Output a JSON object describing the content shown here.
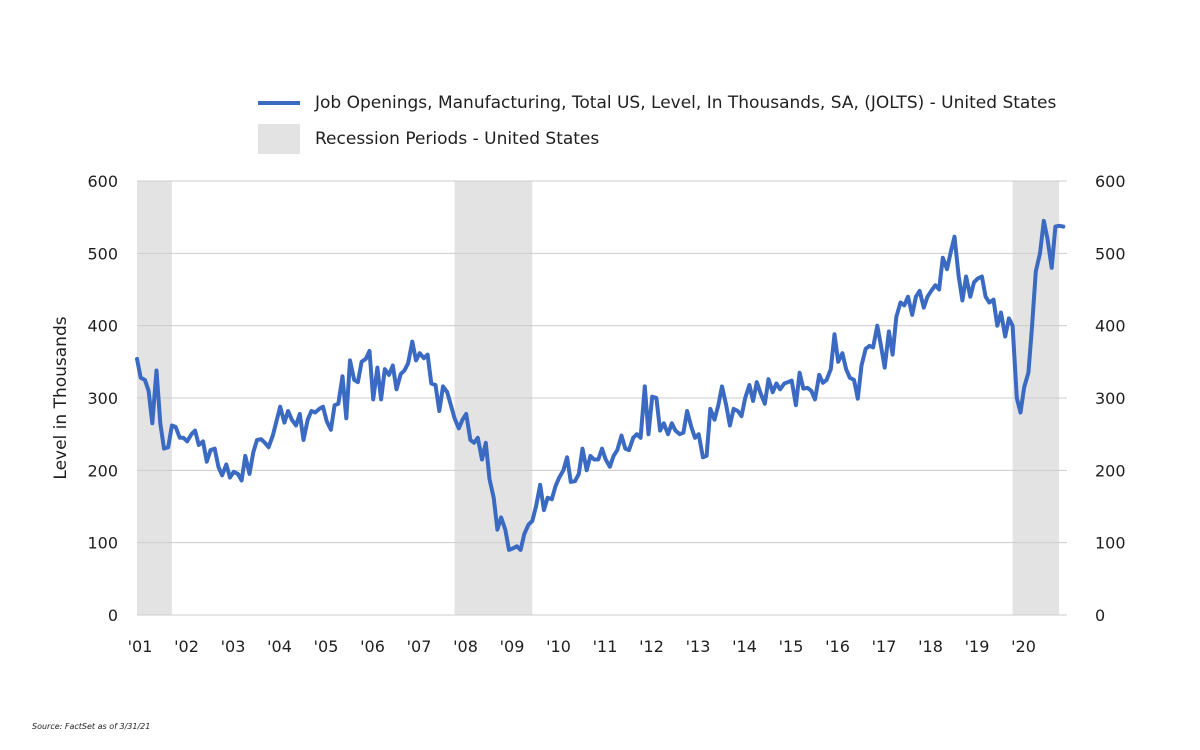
{
  "legend": {
    "series_label": "Job Openings, Manufacturing, Total US, Level, In Thousands, SA, (JOLTS) - United States",
    "recession_label": "Recession Periods - United States"
  },
  "source": "Source: FactSet as of 3/31/21",
  "colors": {
    "series": "#3a6ac2",
    "recession": "#e3e3e3",
    "grid": "#cccccc"
  },
  "chart_data": {
    "type": "line",
    "ylabel": "Level in Thousands",
    "ylim": [
      0,
      600
    ],
    "yticks": [
      0,
      100,
      200,
      300,
      400,
      500,
      600
    ],
    "xlim": [
      2001,
      2021.0
    ],
    "x_tick_labels": [
      "'01",
      "'02",
      "'03",
      "'04",
      "'05",
      "'06",
      "'07",
      "'08",
      "'09",
      "'10",
      "'11",
      "'12",
      "'13",
      "'14",
      "'15",
      "'16",
      "'17",
      "'18",
      "'19",
      "'20"
    ],
    "grid": true,
    "legend_position": "top",
    "recessions": [
      [
        2001.0,
        2001.75
      ],
      [
        2007.83,
        2009.5
      ],
      [
        2019.83,
        2020.83
      ]
    ],
    "series": [
      {
        "name": "Job Openings, Manufacturing, Total US, Level, In Thousands, SA, (JOLTS) - United States",
        "x": [
          2001.0,
          2001.08,
          2001.17,
          2001.25,
          2001.33,
          2001.42,
          2001.5,
          2001.58,
          2001.67,
          2001.75,
          2001.83,
          2001.92,
          2002.0,
          2002.08,
          2002.17,
          2002.25,
          2002.33,
          2002.42,
          2002.5,
          2002.58,
          2002.67,
          2002.75,
          2002.83,
          2002.92,
          2003.0,
          2003.08,
          2003.17,
          2003.25,
          2003.33,
          2003.42,
          2003.5,
          2003.58,
          2003.67,
          2003.75,
          2003.83,
          2003.92,
          2004.0,
          2004.08,
          2004.17,
          2004.25,
          2004.33,
          2004.42,
          2004.5,
          2004.58,
          2004.67,
          2004.75,
          2004.83,
          2004.92,
          2005.0,
          2005.08,
          2005.17,
          2005.25,
          2005.33,
          2005.42,
          2005.5,
          2005.58,
          2005.67,
          2005.75,
          2005.83,
          2005.92,
          2006.0,
          2006.08,
          2006.17,
          2006.25,
          2006.33,
          2006.42,
          2006.5,
          2006.58,
          2006.67,
          2006.75,
          2006.83,
          2006.92,
          2007.0,
          2007.08,
          2007.17,
          2007.25,
          2007.33,
          2007.42,
          2007.5,
          2007.58,
          2007.67,
          2007.75,
          2007.83,
          2007.92,
          2008.0,
          2008.08,
          2008.17,
          2008.25,
          2008.33,
          2008.42,
          2008.5,
          2008.58,
          2008.67,
          2008.75,
          2008.83,
          2008.92,
          2009.0,
          2009.08,
          2009.17,
          2009.25,
          2009.33,
          2009.42,
          2009.5,
          2009.58,
          2009.67,
          2009.75,
          2009.83,
          2009.92,
          2010.0,
          2010.08,
          2010.17,
          2010.25,
          2010.33,
          2010.42,
          2010.5,
          2010.58,
          2010.67,
          2010.75,
          2010.83,
          2010.92,
          2011.0,
          2011.08,
          2011.17,
          2011.25,
          2011.33,
          2011.42,
          2011.5,
          2011.58,
          2011.67,
          2011.75,
          2011.83,
          2011.92,
          2012.0,
          2012.08,
          2012.17,
          2012.25,
          2012.33,
          2012.42,
          2012.5,
          2012.58,
          2012.67,
          2012.75,
          2012.83,
          2012.92,
          2013.0,
          2013.08,
          2013.17,
          2013.25,
          2013.33,
          2013.42,
          2013.5,
          2013.58,
          2013.67,
          2013.75,
          2013.83,
          2013.92,
          2014.0,
          2014.08,
          2014.17,
          2014.25,
          2014.33,
          2014.42,
          2014.5,
          2014.58,
          2014.67,
          2014.75,
          2014.83,
          2014.92,
          2015.0,
          2015.08,
          2015.17,
          2015.25,
          2015.33,
          2015.42,
          2015.5,
          2015.58,
          2015.67,
          2015.75,
          2015.83,
          2015.92,
          2016.0,
          2016.08,
          2016.17,
          2016.25,
          2016.33,
          2016.42,
          2016.5,
          2016.58,
          2016.67,
          2016.75,
          2016.83,
          2016.92,
          2017.0,
          2017.08,
          2017.17,
          2017.25,
          2017.33,
          2017.42,
          2017.5,
          2017.58,
          2017.67,
          2017.75,
          2017.83,
          2017.92,
          2018.0,
          2018.08,
          2018.17,
          2018.25,
          2018.33,
          2018.42,
          2018.5,
          2018.58,
          2018.67,
          2018.75,
          2018.83,
          2018.92,
          2019.0,
          2019.08,
          2019.17,
          2019.25,
          2019.33,
          2019.42,
          2019.5,
          2019.58,
          2019.67,
          2019.75,
          2019.83,
          2019.92,
          2020.0,
          2020.08,
          2020.17,
          2020.25,
          2020.33,
          2020.42,
          2020.5,
          2020.58,
          2020.67,
          2020.75,
          2020.83,
          2020.92
        ],
        "y": [
          354,
          328,
          325,
          310,
          265,
          338,
          265,
          230,
          232,
          262,
          260,
          245,
          245,
          240,
          250,
          255,
          235,
          240,
          212,
          228,
          230,
          205,
          193,
          208,
          190,
          198,
          195,
          186,
          220,
          195,
          225,
          242,
          243,
          238,
          232,
          248,
          268,
          288,
          266,
          282,
          270,
          262,
          278,
          242,
          270,
          282,
          280,
          285,
          288,
          268,
          256,
          290,
          292,
          330,
          272,
          352,
          325,
          322,
          350,
          354,
          365,
          298,
          342,
          298,
          340,
          332,
          345,
          312,
          333,
          338,
          348,
          378,
          352,
          362,
          355,
          360,
          320,
          318,
          282,
          316,
          308,
          290,
          272,
          258,
          270,
          278,
          242,
          238,
          245,
          215,
          238,
          188,
          162,
          118,
          135,
          118,
          90,
          92,
          95,
          90,
          112,
          125,
          130,
          150,
          180,
          145,
          162,
          160,
          178,
          190,
          200,
          218,
          184,
          185,
          195,
          230,
          200,
          220,
          215,
          215,
          230,
          215,
          205,
          220,
          228,
          248,
          230,
          228,
          245,
          250,
          245,
          316,
          250,
          302,
          300,
          255,
          265,
          250,
          265,
          255,
          250,
          252,
          282,
          260,
          245,
          250,
          218,
          220,
          285,
          270,
          290,
          316,
          290,
          262,
          285,
          282,
          275,
          300,
          318,
          296,
          322,
          305,
          292,
          326,
          308,
          320,
          312,
          320,
          322,
          324,
          290,
          335,
          313,
          314,
          310,
          298,
          332,
          321,
          325,
          340,
          388,
          350,
          362,
          340,
          328,
          325,
          299,
          345,
          368,
          372,
          370,
          400,
          372,
          342,
          392,
          360,
          412,
          432,
          428,
          440,
          415,
          440,
          448,
          425,
          440,
          448,
          456,
          450,
          494,
          478,
          502,
          523,
          468,
          435,
          468,
          440,
          460,
          465,
          468,
          440,
          432,
          436,
          400,
          418,
          385,
          410,
          400,
          300,
          280,
          315,
          335,
          400,
          475,
          500,
          545,
          520,
          480,
          537,
          538,
          537
        ]
      }
    ]
  }
}
